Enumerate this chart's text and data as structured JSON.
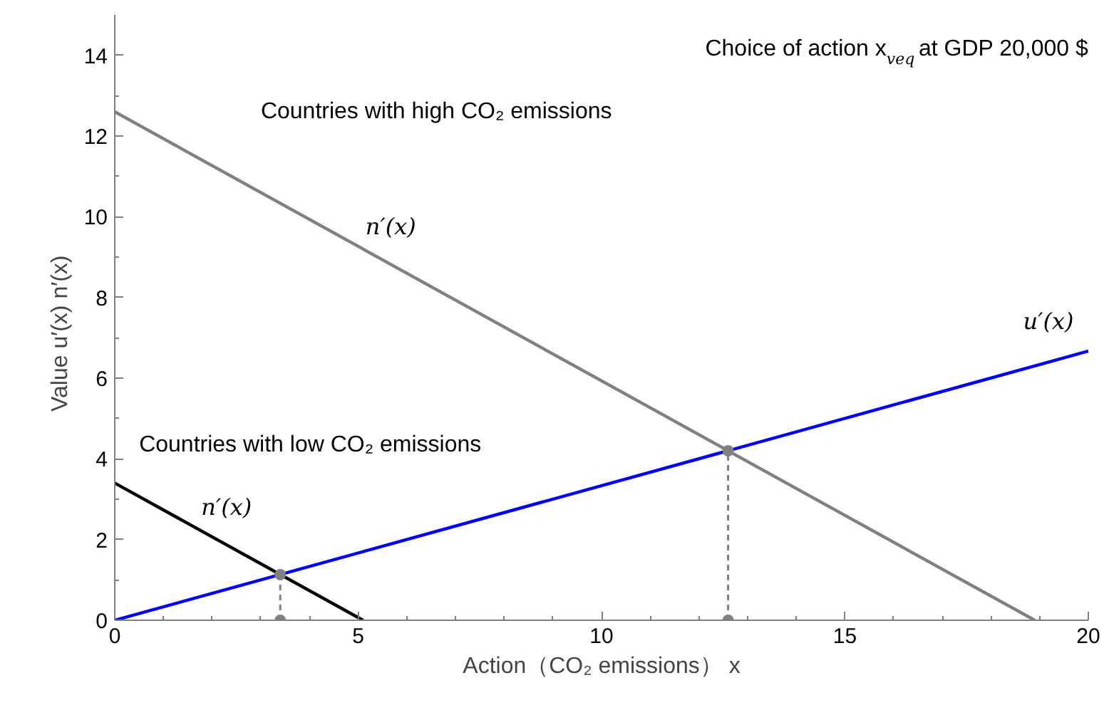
{
  "chart_data": {
    "type": "line",
    "title": "Choice of action x$_{veq}$ at GDP 20,000 $",
    "xlabel": "Action（CO₂ emissions） x",
    "ylabel": "Value    u′(x)   n′(x)",
    "xlim": [
      0,
      20
    ],
    "ylim": [
      0,
      15
    ],
    "xticks": [
      0,
      {
        "value": 1,
        "label": null
      },
      {
        "value": 2,
        "label": null
      },
      {
        "value": 3,
        "label": null
      },
      {
        "value": 4,
        "label": null
      },
      5,
      {
        "value": 6,
        "label": null
      },
      {
        "value": 7,
        "label": null
      },
      {
        "value": 8,
        "label": null
      },
      {
        "value": 9,
        "label": null
      },
      10,
      {
        "value": 11,
        "label": null
      },
      {
        "value": 12,
        "label": null
      },
      {
        "value": 13,
        "label": null
      },
      {
        "value": 14,
        "label": null
      },
      15,
      {
        "value": 16,
        "label": null
      },
      {
        "value": 17,
        "label": null
      },
      {
        "value": 18,
        "label": null
      },
      {
        "value": 19,
        "label": null
      },
      20
    ],
    "yticks": [
      0,
      {
        "value": 1,
        "label": null
      },
      2,
      {
        "value": 3,
        "label": null
      },
      4,
      {
        "value": 5,
        "label": null
      },
      6,
      {
        "value": 7,
        "label": null
      },
      8,
      {
        "value": 9,
        "label": null
      },
      10,
      {
        "value": 11,
        "label": null
      },
      12,
      {
        "value": 13,
        "label": null
      },
      14
    ],
    "grid": false,
    "series": [
      {
        "name": "u′(x)",
        "color": "#0000ff",
        "x": [
          0,
          20
        ],
        "values": [
          0,
          6.67
        ]
      },
      {
        "name": "n′(x)",
        "color": "#808080",
        "x": [
          0,
          18.9
        ],
        "values": [
          12.6,
          0
        ]
      },
      {
        "name": "n′(x)",
        "color": "#000000",
        "x": [
          0,
          5.1
        ],
        "values": [
          3.4,
          0
        ]
      },
      {
        "type": "line",
        "line_style": "dashed",
        "color": "#808080",
        "x": [
          3.4,
          3.4
        ],
        "values": [
          0,
          1.13
        ]
      },
      {
        "type": "line",
        "line_style": "dashed",
        "color": "#808080",
        "x": [
          12.6,
          12.6
        ],
        "values": [
          0,
          4.2
        ]
      },
      {
        "type": "scatter",
        "color": "#808080",
        "x": [
          3.4,
          3.4,
          12.6,
          12.6
        ],
        "values": [
          0,
          1.13,
          0,
          4.2
        ]
      }
    ],
    "annotations": [
      "Countries with high CO₂ emissions",
      "Countries with low CO₂ emissions"
    ]
  }
}
